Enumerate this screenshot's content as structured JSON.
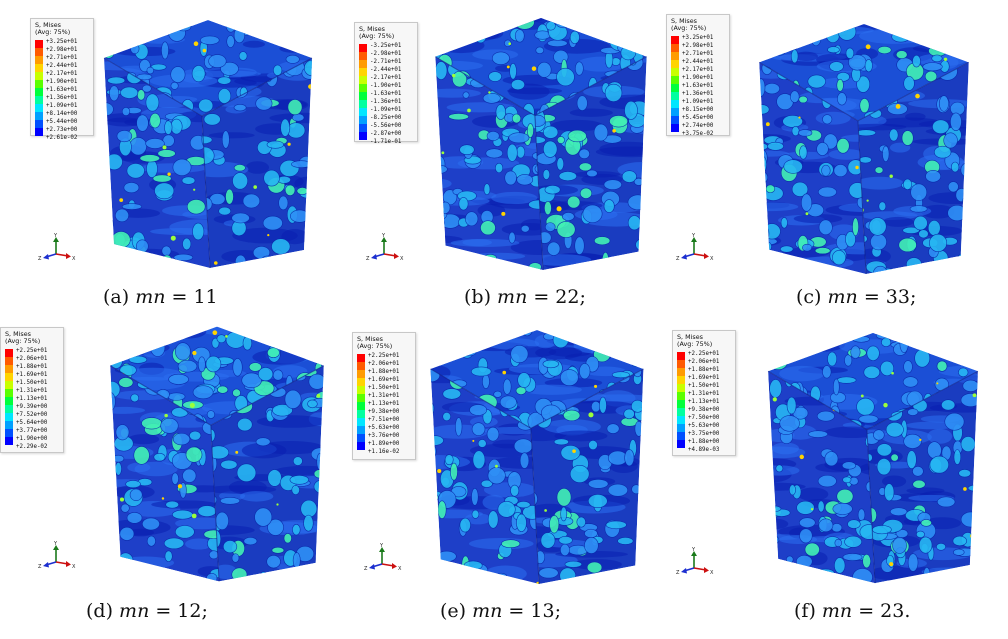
{
  "triad": {
    "y": "Y",
    "z": "Z",
    "x": "X"
  },
  "palette": [
    "#ff0000",
    "#ff5a00",
    "#ff9b00",
    "#ffd400",
    "#c8ff00",
    "#5aff00",
    "#00ff3c",
    "#00ffa0",
    "#00e6ff",
    "#00a0ff",
    "#0050ff",
    "#0000ff"
  ],
  "panels": [
    {
      "legend": {
        "title1": "S, Mises",
        "title2": "(Avg: 75%)",
        "values": [
          "+3.25e+01",
          "+2.98e+01",
          "+2.71e+01",
          "+2.44e+01",
          "+2.17e+01",
          "+1.90e+01",
          "+1.63e+01",
          "+1.36e+01",
          "+1.09e+01",
          "+8.14e+00",
          "+5.44e+00",
          "+2.73e+00",
          "+2.61e-02"
        ]
      },
      "caption": {
        "label": "(a)",
        "var": "mn",
        "eq": " = 11"
      }
    },
    {
      "legend": {
        "title1": "S, Mises",
        "title2": "(Avg: 75%)",
        "values": [
          "-3.25e+01",
          "-2.98e+01",
          "-2.71e+01",
          "-2.44e+01",
          "-2.17e+01",
          "-1.90e+01",
          "-1.63e+01",
          "-1.36e+01",
          "-1.09e+01",
          "-8.25e+00",
          "-5.56e+00",
          "-2.87e+00",
          "-1.71e-01"
        ]
      },
      "caption": {
        "label": "(b)",
        "var": "mn",
        "eq": " = 22;"
      }
    },
    {
      "legend": {
        "title1": "S, Mises",
        "title2": "(Avg: 75%)",
        "values": [
          "+3.25e+01",
          "+2.98e+01",
          "+2.71e+01",
          "+2.44e+01",
          "+2.17e+01",
          "+1.90e+01",
          "+1.63e+01",
          "+1.36e+01",
          "+1.09e+01",
          "+8.15e+00",
          "+5.45e+00",
          "+2.74e+00",
          "+3.75e-02"
        ]
      },
      "caption": {
        "label": "(c)",
        "var": "mn",
        "eq": " = 33;"
      }
    },
    {
      "legend": {
        "title1": "S, Mises",
        "title2": "(Avg: 75%)",
        "values": [
          "+2.25e+01",
          "+2.06e+01",
          "+1.88e+01",
          "+1.69e+01",
          "+1.50e+01",
          "+1.31e+01",
          "+1.13e+01",
          "+9.39e+00",
          "+7.52e+00",
          "+5.64e+00",
          "+3.77e+00",
          "+1.90e+00",
          "+2.29e-02"
        ]
      },
      "caption": {
        "label": "(d)",
        "var": "mn",
        "eq": " = 12;"
      }
    },
    {
      "legend": {
        "title1": "S, Mises",
        "title2": "(Avg: 75%)",
        "values": [
          "+2.25e+01",
          "+2.06e+01",
          "+1.88e+01",
          "+1.69e+01",
          "+1.50e+01",
          "+1.31e+01",
          "+1.13e+01",
          "+9.38e+00",
          "+7.51e+00",
          "+5.63e+00",
          "+3.76e+00",
          "+1.89e+00",
          "+1.16e-02"
        ]
      },
      "caption": {
        "label": "(e)",
        "var": "mn",
        "eq": " = 13;"
      }
    },
    {
      "legend": {
        "title1": "S, Mises",
        "title2": "(Avg: 75%)",
        "values": [
          "+2.25e+01",
          "+2.06e+01",
          "+1.88e+01",
          "+1.69e+01",
          "+1.50e+01",
          "+1.31e+01",
          "+1.13e+01",
          "+9.38e+00",
          "+7.50e+00",
          "+5.63e+00",
          "+3.75e+00",
          "+1.88e+00",
          "+4.89e-03"
        ]
      },
      "caption": {
        "label": "(f)",
        "var": "mn",
        "eq": " = 23."
      }
    }
  ]
}
